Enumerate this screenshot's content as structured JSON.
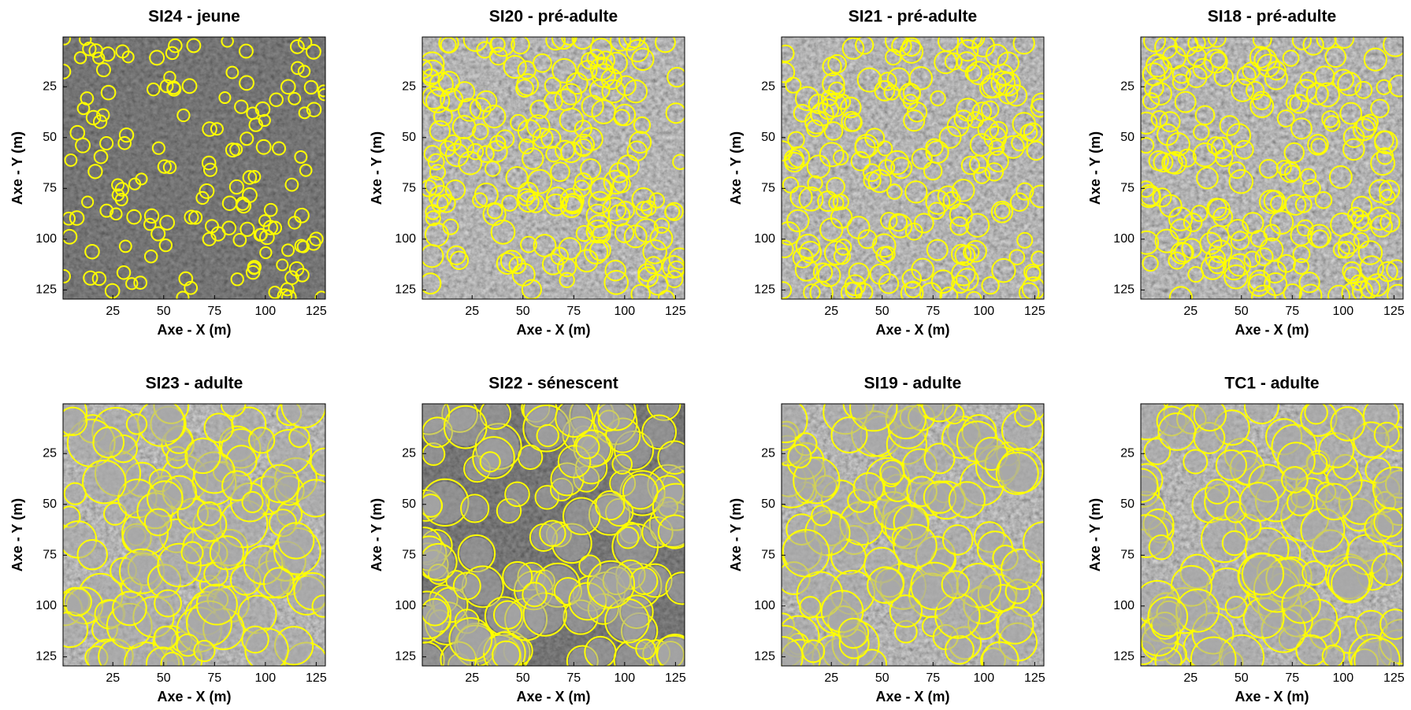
{
  "chart_data": [
    {
      "type": "image",
      "title": "SI24 - jeune",
      "xlabel": "Axe - X (m)",
      "ylabel": "Axe - Y (m)",
      "xlim": [
        0.5,
        129.5
      ],
      "ylim": [
        129.5,
        0.5
      ],
      "xticks": [
        25,
        50,
        75,
        100,
        125
      ],
      "yticks": [
        25,
        50,
        75,
        100,
        125
      ]
    },
    {
      "type": "image",
      "title": "SI20 - pré-adulte",
      "xlabel": "Axe - X (m)",
      "ylabel": "Axe - Y (m)",
      "xlim": [
        0.5,
        129.5
      ],
      "ylim": [
        129.5,
        0.5
      ],
      "xticks": [
        25,
        50,
        75,
        100,
        125
      ],
      "yticks": [
        25,
        50,
        75,
        100,
        125
      ]
    },
    {
      "type": "image",
      "title": "SI21 - pré-adulte",
      "xlabel": "Axe - X (m)",
      "ylabel": "Axe - Y (m)",
      "xlim": [
        0.5,
        129.5
      ],
      "ylim": [
        129.5,
        0.5
      ],
      "xticks": [
        25,
        50,
        75,
        100,
        125
      ],
      "yticks": [
        25,
        50,
        75,
        100,
        125
      ]
    },
    {
      "type": "image",
      "title": "SI18 - pré-adulte",
      "xlabel": "Axe - X (m)",
      "ylabel": "Axe - Y (m)",
      "xlim": [
        0.5,
        129.5
      ],
      "ylim": [
        129.5,
        0.5
      ],
      "xticks": [
        25,
        50,
        75,
        100,
        125
      ],
      "yticks": [
        25,
        50,
        75,
        100,
        125
      ]
    },
    {
      "type": "image",
      "title": "SI23 - adulte",
      "xlabel": "Axe - X (m)",
      "ylabel": "Axe - Y (m)",
      "xlim": [
        0.5,
        129.5
      ],
      "ylim": [
        129.5,
        0.5
      ],
      "xticks": [
        25,
        50,
        75,
        100,
        125
      ],
      "yticks": [
        25,
        50,
        75,
        100,
        125
      ]
    },
    {
      "type": "image",
      "title": "SI22 - sénescent",
      "xlabel": "Axe - X (m)",
      "ylabel": "Axe - Y (m)",
      "xlim": [
        0.5,
        129.5
      ],
      "ylim": [
        129.5,
        0.5
      ],
      "xticks": [
        25,
        50,
        75,
        100,
        125
      ],
      "yticks": [
        25,
        50,
        75,
        100,
        125
      ]
    },
    {
      "type": "image",
      "title": "SI19 - adulte",
      "xlabel": "Axe - X (m)",
      "ylabel": "Axe - Y (m)",
      "xlim": [
        0.5,
        129.5
      ],
      "ylim": [
        129.5,
        0.5
      ],
      "xticks": [
        25,
        50,
        75,
        100,
        125
      ],
      "yticks": [
        25,
        50,
        75,
        100,
        125
      ]
    },
    {
      "type": "image",
      "title": "TC1 - adulte",
      "xlabel": "Axe - X (m)",
      "ylabel": "Axe - Y (m)",
      "xlim": [
        0.5,
        129.5
      ],
      "ylim": [
        129.5,
        0.5
      ],
      "xticks": [
        25,
        50,
        75,
        100,
        125
      ],
      "yticks": [
        25,
        50,
        75,
        100,
        125
      ]
    }
  ]
}
